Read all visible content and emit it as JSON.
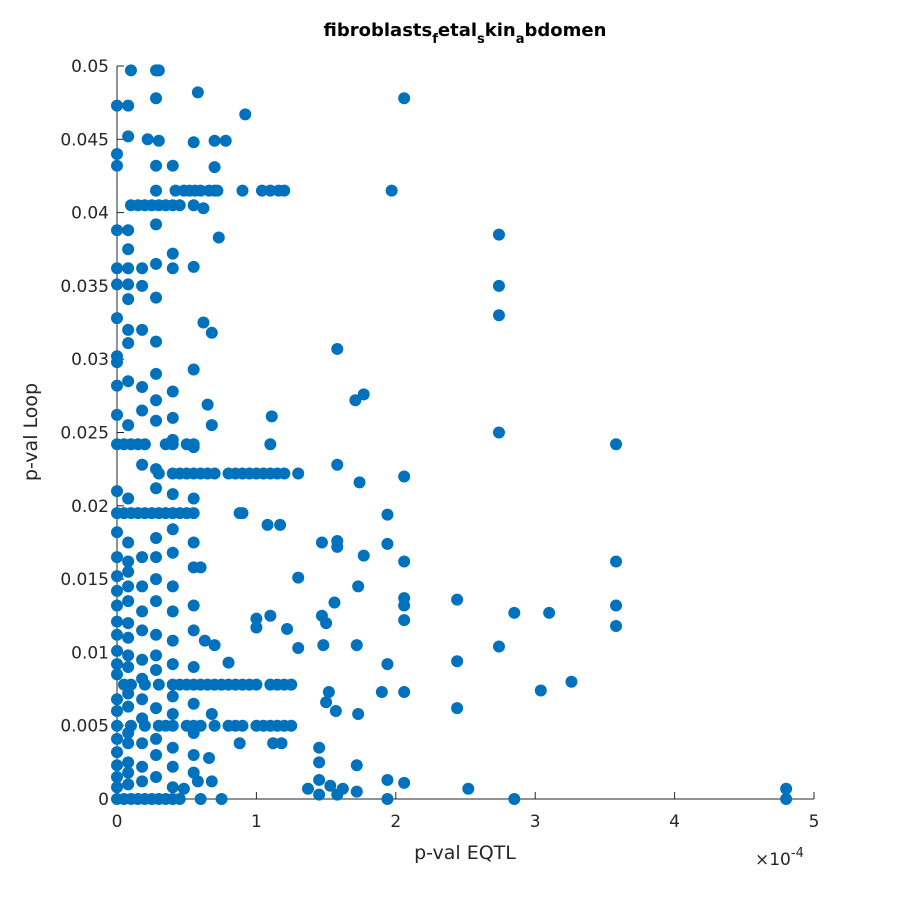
{
  "chart_data": {
    "type": "scatter",
    "title": [
      "fibroblasts",
      "f",
      "etal",
      "s",
      "kin",
      "a",
      "bdomen"
    ],
    "x_label": "p-val EQTL",
    "y_label": "p-val Loop",
    "x_multiplier": {
      "base": "×10",
      "exponent": "-4"
    },
    "color": "#0072bd",
    "xlim": [
      0,
      5
    ],
    "xticks": [
      0,
      1,
      2,
      3,
      4,
      5
    ],
    "ylim": [
      0,
      0.05
    ],
    "yticks": [
      0,
      0.005,
      0.01,
      0.015,
      0.02,
      0.025,
      0.03,
      0.035,
      0.04,
      0.045,
      0.05
    ],
    "grid": false,
    "series": [
      {
        "x": [
          0.42,
          0.48,
          0.52,
          0.56,
          0.6,
          0.66,
          0.7,
          0.72,
          0.9,
          1.04,
          1.1,
          1.16,
          1.2
        ],
        "values": [
          0.0415,
          0.0415,
          0.0415,
          0.0415,
          0.0415,
          0.0415,
          0.0415,
          0.0415,
          0.0415,
          0.0415,
          0.0415,
          0.0415,
          0.0415
        ]
      },
      {
        "x": [
          0.1,
          0.15,
          0.2,
          0.25,
          0.3,
          0.35,
          0.4,
          0.45,
          0.55
        ],
        "values": [
          0.0405,
          0.0405,
          0.0405,
          0.0405,
          0.0405,
          0.0405,
          0.0405,
          0.0405,
          0.0405
        ]
      },
      {
        "x": [
          0.3,
          0.4,
          0.45,
          0.5,
          0.55,
          0.6,
          0.65,
          0.7,
          0.8,
          0.85,
          0.9,
          0.95,
          1.0,
          1.05,
          1.1,
          1.15,
          1.2,
          1.3
        ],
        "values": [
          0.0222,
          0.0222,
          0.0222,
          0.0222,
          0.0222,
          0.0222,
          0.0222,
          0.0222,
          0.0222,
          0.0222,
          0.0222,
          0.0222,
          0.0222,
          0.0222,
          0.0222,
          0.0222,
          0.0222,
          0.0222
        ]
      },
      {
        "x": [
          0.0,
          0.05,
          0.1,
          0.15,
          0.2,
          0.25,
          0.3,
          0.35,
          0.4,
          0.45,
          0.5,
          0.55,
          0.9
        ],
        "values": [
          0.0195,
          0.0195,
          0.0195,
          0.0195,
          0.0195,
          0.0195,
          0.0195,
          0.0195,
          0.0195,
          0.0195,
          0.0195,
          0.0195,
          0.0195
        ]
      },
      {
        "x": [
          0.05,
          0.1,
          0.2,
          0.3,
          0.4,
          0.45,
          0.5,
          0.55,
          0.6,
          0.65,
          0.7,
          0.75,
          0.8,
          0.85,
          0.9,
          0.95,
          1.0,
          1.1,
          1.15,
          1.2,
          1.25
        ],
        "values": [
          0.0078,
          0.0078,
          0.0078,
          0.0078,
          0.0078,
          0.0078,
          0.0078,
          0.0078,
          0.0078,
          0.0078,
          0.0078,
          0.0078,
          0.0078,
          0.0078,
          0.0078,
          0.0078,
          0.0078,
          0.0078,
          0.0078,
          0.0078,
          0.0078
        ]
      },
      {
        "x": [
          0.0,
          0.1,
          0.2,
          0.3,
          0.35,
          0.4,
          0.5,
          0.55,
          0.6,
          0.7,
          0.8,
          0.85,
          0.9,
          1.0,
          1.05,
          1.1,
          1.15,
          1.2,
          1.25
        ],
        "values": [
          0.005,
          0.005,
          0.005,
          0.005,
          0.005,
          0.005,
          0.005,
          0.005,
          0.005,
          0.005,
          0.005,
          0.005,
          0.005,
          0.005,
          0.005,
          0.005,
          0.005,
          0.005,
          0.005
        ]
      },
      {
        "x": [
          0.0,
          0.05,
          0.1,
          0.15,
          0.2,
          0.35,
          0.4,
          0.5,
          0.55,
          1.1
        ],
        "values": [
          0.0242,
          0.0242,
          0.0242,
          0.0242,
          0.0242,
          0.0242,
          0.0242,
          0.0242,
          0.0242,
          0.0242
        ]
      },
      {
        "x": [
          0.0,
          0.05,
          0.1,
          0.15,
          0.2,
          0.25,
          0.3,
          0.35,
          0.4,
          0.45,
          0.6,
          0.75,
          1.94,
          2.85,
          4.8
        ],
        "values": [
          0,
          0,
          0,
          0,
          0,
          0,
          0,
          0,
          0,
          0,
          0,
          0,
          0,
          0,
          0
        ]
      },
      {
        "x": [
          0,
          0,
          0,
          0,
          0,
          0,
          0,
          0,
          0,
          0,
          0,
          0,
          0,
          0,
          0,
          0,
          0,
          0,
          0,
          0,
          0,
          0,
          0,
          0,
          0,
          0,
          0,
          0,
          0
        ],
        "values": [
          0.0473,
          0.044,
          0.0432,
          0.0388,
          0.0362,
          0.0351,
          0.0328,
          0.0302,
          0.0298,
          0.0282,
          0.0262,
          0.021,
          0.0182,
          0.0165,
          0.0152,
          0.0142,
          0.0132,
          0.0121,
          0.0112,
          0.0101,
          0.0092,
          0.0085,
          0.0068,
          0.006,
          0.0041,
          0.0032,
          0.0023,
          0.0015,
          0.0008
        ]
      },
      {
        "x": [
          0.08,
          0.08,
          0.08,
          0.08,
          0.08,
          0.08,
          0.08,
          0.08,
          0.08,
          0.08,
          0.08,
          0.08,
          0.08,
          0.08,
          0.08,
          0.08,
          0.08,
          0.08,
          0.08,
          0.08,
          0.08,
          0.08,
          0.08,
          0.08,
          0.08,
          0.08,
          0.08,
          0.08
        ],
        "values": [
          0.0473,
          0.0452,
          0.0388,
          0.0375,
          0.0362,
          0.0351,
          0.0341,
          0.032,
          0.0311,
          0.0285,
          0.0255,
          0.0205,
          0.0175,
          0.0162,
          0.0155,
          0.0145,
          0.0135,
          0.012,
          0.011,
          0.0098,
          0.009,
          0.0072,
          0.0063,
          0.0045,
          0.0038,
          0.0025,
          0.0018,
          0.001
        ]
      },
      {
        "x": [
          0.18,
          0.18,
          0.18,
          0.18,
          0.18,
          0.18,
          0.18,
          0.18,
          0.18,
          0.18,
          0.18,
          0.18,
          0.18,
          0.18,
          0.18,
          0.18,
          0.18
        ],
        "values": [
          0.0362,
          0.035,
          0.032,
          0.0281,
          0.0265,
          0.0228,
          0.0165,
          0.0145,
          0.0128,
          0.0115,
          0.0095,
          0.0082,
          0.0068,
          0.0055,
          0.0038,
          0.0022,
          0.0012
        ]
      },
      {
        "x": [
          0.28,
          0.28,
          0.28,
          0.28,
          0.28,
          0.28,
          0.28,
          0.28,
          0.28,
          0.28,
          0.28,
          0.28,
          0.28,
          0.28,
          0.28,
          0.28,
          0.28,
          0.28,
          0.28,
          0.28,
          0.28,
          0.28,
          0.28,
          0.28
        ],
        "values": [
          0.0497,
          0.0478,
          0.0432,
          0.0415,
          0.0392,
          0.0365,
          0.0342,
          0.0312,
          0.029,
          0.0272,
          0.0258,
          0.0225,
          0.0212,
          0.0178,
          0.0165,
          0.015,
          0.0135,
          0.0112,
          0.0098,
          0.0088,
          0.0062,
          0.0041,
          0.003,
          0.0015
        ]
      },
      {
        "x": [
          0.4,
          0.4,
          0.4,
          0.4,
          0.4,
          0.4,
          0.4,
          0.4,
          0.4,
          0.4,
          0.4,
          0.4,
          0.4,
          0.4,
          0.4,
          0.4,
          0.4,
          0.4
        ],
        "values": [
          0.0432,
          0.0372,
          0.0362,
          0.0278,
          0.026,
          0.0245,
          0.0208,
          0.0184,
          0.0168,
          0.0145,
          0.0128,
          0.0108,
          0.0092,
          0.007,
          0.0058,
          0.0035,
          0.0022,
          0.0008
        ]
      },
      {
        "x": [
          0.55,
          0.55,
          0.55,
          0.55,
          0.55,
          0.55,
          0.55,
          0.55,
          0.55,
          0.55,
          0.55,
          0.55,
          0.55,
          0.55
        ],
        "values": [
          0.0448,
          0.0363,
          0.0293,
          0.024,
          0.0205,
          0.0175,
          0.0158,
          0.0132,
          0.0115,
          0.009,
          0.0065,
          0.0045,
          0.003,
          0.0018
        ]
      },
      {
        "x": [
          0.1,
          0.3,
          0.58,
          0.92,
          0.7,
          0.78,
          0.7,
          0.22,
          0.3,
          0.62,
          0.73,
          0.62,
          0.68,
          0.65,
          0.68,
          1.11,
          0.88,
          1.08,
          1.17,
          0.6,
          0.8,
          0.63,
          0.7,
          0.68,
          0.88,
          1.12,
          1.18,
          0.66,
          0.68,
          0.58,
          0.48
        ],
        "values": [
          0.0497,
          0.0497,
          0.0482,
          0.0467,
          0.0449,
          0.0449,
          0.0431,
          0.045,
          0.0449,
          0.0403,
          0.0383,
          0.0325,
          0.0318,
          0.0269,
          0.0255,
          0.0261,
          0.0195,
          0.0187,
          0.0187,
          0.0158,
          0.0093,
          0.0108,
          0.0105,
          0.0058,
          0.0038,
          0.0038,
          0.0038,
          0.0028,
          0.0012,
          0.0012,
          0.0007
        ]
      },
      {
        "x": [
          4.8,
          3.58,
          3.58,
          3.58,
          3.58,
          3.26,
          3.1,
          3.04,
          2.85,
          2.74,
          2.74,
          2.74,
          2.74,
          2.74,
          2.52,
          2.44,
          2.44,
          2.44,
          2.06,
          1.97,
          2.06,
          2.06,
          2.06,
          2.06,
          2.06,
          2.06,
          2.06,
          1.94,
          1.94,
          1.94,
          1.94,
          1.9,
          1.73,
          1.58,
          1.71,
          1.77,
          1.58,
          1.74,
          1.58,
          1.58,
          1.47,
          1.77,
          1.73,
          1.56,
          1.47,
          1.5,
          1.72,
          1.48,
          1.3,
          1.3,
          1.22,
          1.1,
          1.0,
          1.0,
          1.57,
          1.5,
          1.52,
          1.45,
          1.45,
          1.45,
          1.45,
          1.58,
          1.62,
          1.37,
          1.72,
          1.72,
          1.53
        ],
        "values": [
          0.0007,
          0.0242,
          0.0162,
          0.0132,
          0.0118,
          0.008,
          0.0127,
          0.0074,
          0.0127,
          0.0385,
          0.035,
          0.033,
          0.025,
          0.0104,
          0.0007,
          0.0136,
          0.0094,
          0.0062,
          0.0478,
          0.0415,
          0.022,
          0.0162,
          0.0137,
          0.0132,
          0.0122,
          0.0073,
          0.0011,
          0.0194,
          0.0174,
          0.0092,
          0.0013,
          0.0073,
          0.0058,
          0.0307,
          0.0272,
          0.0276,
          0.0228,
          0.0216,
          0.0176,
          0.0172,
          0.0175,
          0.0166,
          0.0145,
          0.0134,
          0.0125,
          0.012,
          0.0105,
          0.0105,
          0.0151,
          0.0103,
          0.0116,
          0.0125,
          0.0123,
          0.0117,
          0.006,
          0.0066,
          0.0073,
          0.0035,
          0.0025,
          0.0013,
          0.0003,
          0.0003,
          0.0007,
          0.0007,
          0.0023,
          0.0005,
          0.0009
        ]
      }
    ]
  }
}
